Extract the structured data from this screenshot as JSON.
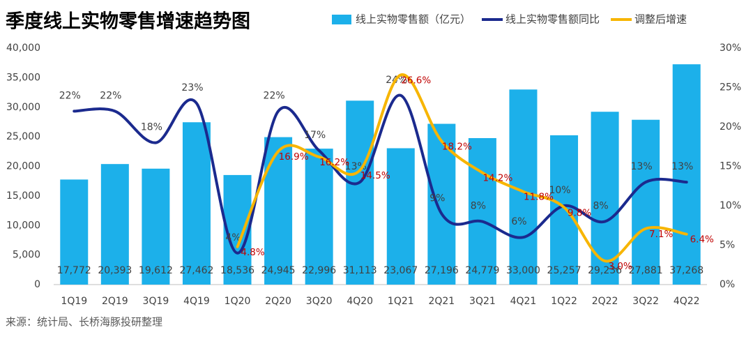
{
  "chart_data": {
    "type": "bar-line",
    "title": "季度线上实物零售增速趋势图",
    "source": "来源：统计局、长桥海豚投研整理",
    "legend": "top-right",
    "categories": [
      "1Q19",
      "2Q19",
      "3Q19",
      "4Q19",
      "1Q20",
      "2Q20",
      "3Q20",
      "4Q20",
      "1Q21",
      "2Q21",
      "3Q21",
      "4Q21",
      "1Q22",
      "2Q22",
      "3Q22",
      "4Q22"
    ],
    "series": [
      {
        "name": "线上实物零售额（亿元）",
        "type": "bar",
        "color": "#1cb0ea",
        "values": [
          17772,
          20393,
          19612,
          27462,
          18536,
          24945,
          22996,
          31113,
          23067,
          27196,
          24779,
          33000,
          25257,
          29236,
          27881,
          37268
        ],
        "value_labels": [
          "17,772",
          "20,393",
          "19,612",
          "27,462",
          "18,536",
          "24,945",
          "22,996",
          "31,113",
          "23,067",
          "27,196",
          "24,779",
          "33,000",
          "25,257",
          "29,236",
          "27,881",
          "37,268"
        ]
      },
      {
        "name": "线上实物零售额同比",
        "type": "line",
        "axis": "y2",
        "color": "#1b2a8e",
        "values": [
          22,
          22,
          18,
          23,
          4,
          22,
          17,
          13,
          24,
          9,
          8,
          6,
          10,
          8,
          13,
          13
        ],
        "value_labels": [
          "22%",
          "22%",
          "18%",
          "23%",
          "4%",
          "22%",
          "17%",
          "13%",
          "24%",
          "9%",
          "8%",
          "6%",
          "10%",
          "8%",
          "13%",
          "13%"
        ]
      },
      {
        "name": "调整后增速",
        "type": "line",
        "axis": "y2",
        "color": "#f7b500",
        "values": [
          null,
          null,
          null,
          null,
          4.8,
          16.9,
          16.2,
          14.5,
          26.6,
          18.2,
          14.2,
          11.8,
          9.8,
          3.0,
          7.1,
          6.4
        ],
        "value_labels": [
          null,
          null,
          null,
          null,
          "4.8%",
          "16.9%",
          "16.2%",
          "14.5%",
          "26.6%",
          "18.2%",
          "14.2%",
          "11.8%",
          "9.8%",
          "3.0%",
          "7.1%",
          "6.4%"
        ]
      }
    ],
    "ylim": [
      0,
      40000
    ],
    "yticks": [
      {
        "value": 0,
        "label": "0"
      },
      {
        "value": 5000,
        "label": "5,000"
      },
      {
        "value": 10000,
        "label": "10,000"
      },
      {
        "value": 15000,
        "label": "15,000"
      },
      {
        "value": 20000,
        "label": "20,000"
      },
      {
        "value": 25000,
        "label": "25,000"
      },
      {
        "value": 30000,
        "label": "30,000"
      },
      {
        "value": 35000,
        "label": "35,000"
      },
      {
        "value": 40000,
        "label": "40,000"
      }
    ],
    "y2lim": [
      0,
      30
    ],
    "y2ticks": [
      {
        "value": 0,
        "label": "0%"
      },
      {
        "value": 5,
        "label": "5%"
      },
      {
        "value": 10,
        "label": "10%"
      },
      {
        "value": 15,
        "label": "15%"
      },
      {
        "value": 20,
        "label": "20%"
      },
      {
        "value": 25,
        "label": "25%"
      },
      {
        "value": 30,
        "label": "30%"
      }
    ]
  }
}
